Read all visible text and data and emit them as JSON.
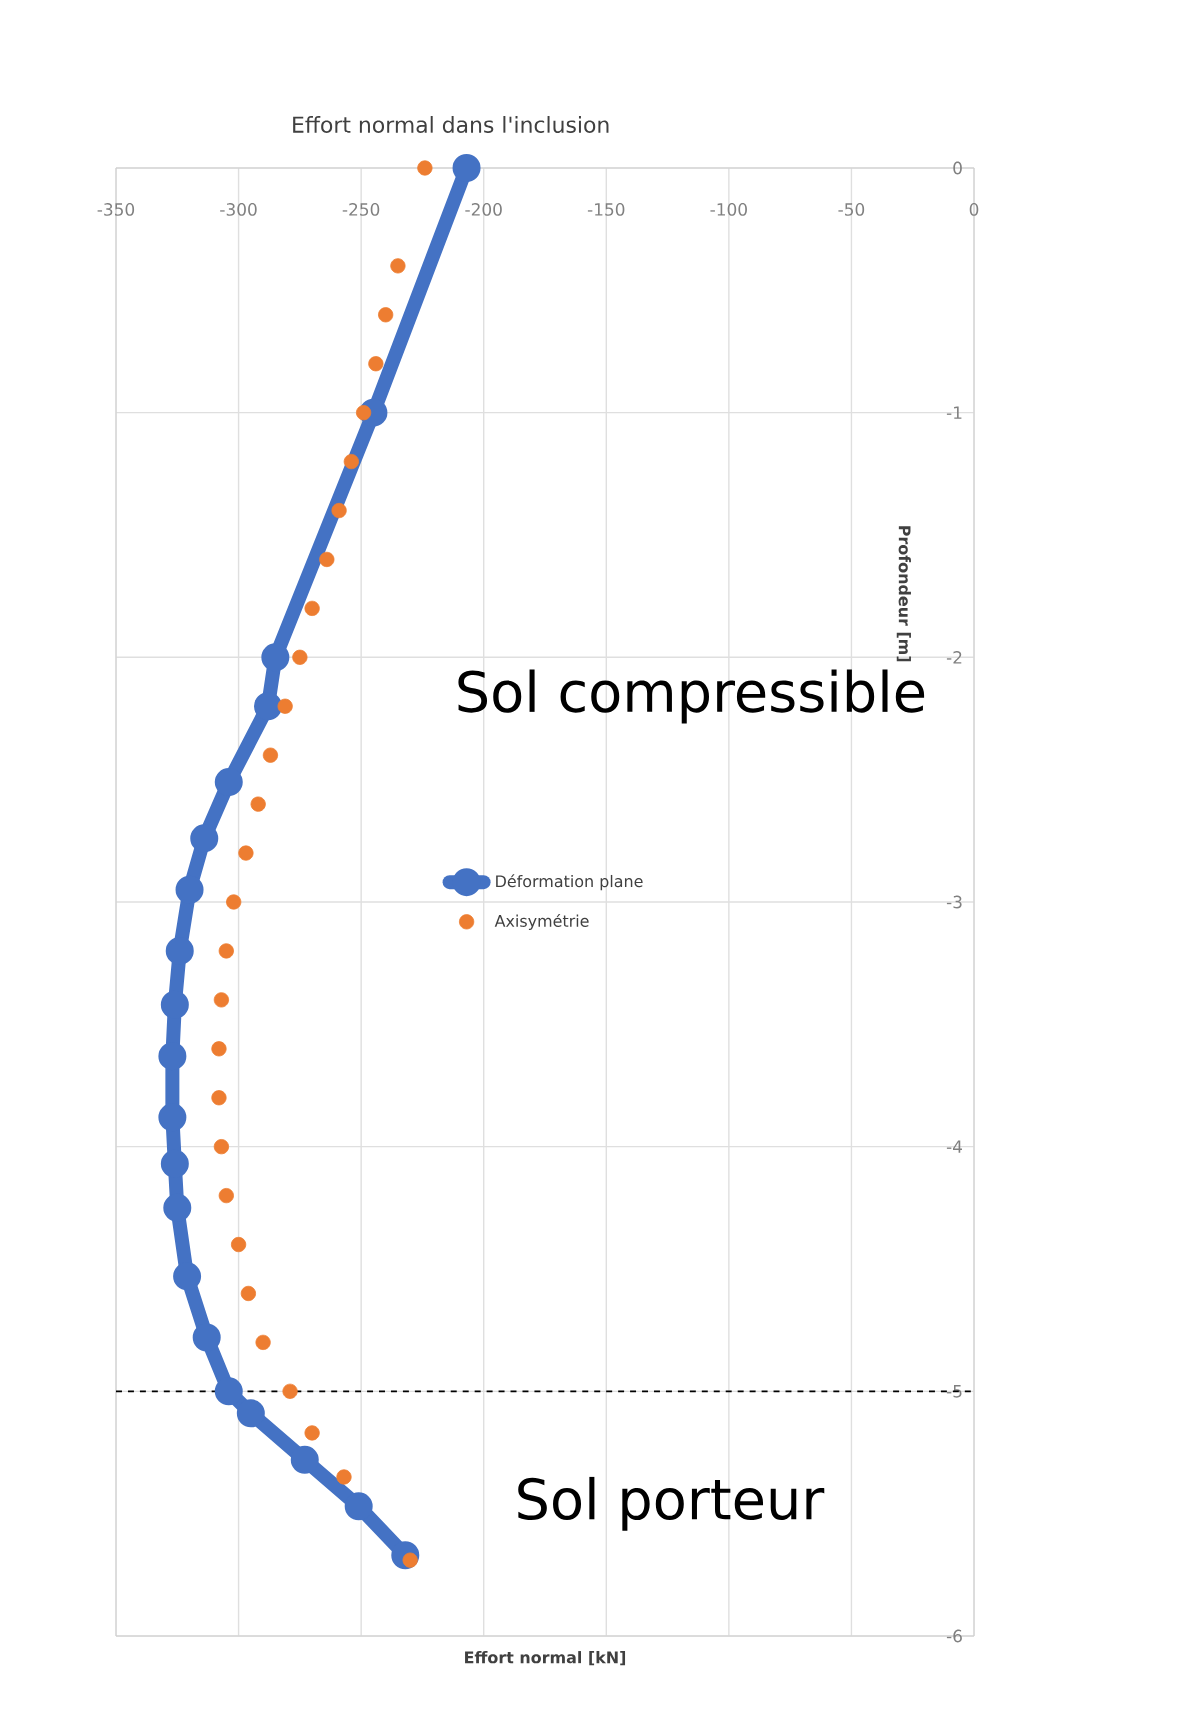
{
  "chart_data": {
    "type": "scatter",
    "title": "Effort normal dans l'inclusion",
    "xlabel": "Effort normal [kN]",
    "ylabel": "Profondeur [m]",
    "xlim": [
      -350,
      0
    ],
    "ylim": [
      -6,
      0
    ],
    "xticks": [
      -350,
      -300,
      -250,
      -200,
      -150,
      -100,
      -50,
      0
    ],
    "yticks": [
      -6,
      -5,
      -4,
      -3,
      -2,
      -1,
      0
    ],
    "grid": true,
    "legend": "center",
    "marker": "circle",
    "series": [
      {
        "name": "Déformation plane",
        "type": "line",
        "color": "#4472c4",
        "x": [
          -207,
          -245,
          -285,
          -288,
          -304,
          -314,
          -320,
          -324,
          -326,
          -327,
          -327,
          -326,
          -325,
          -321,
          -313,
          -304,
          -295,
          -273,
          -251,
          -232
        ],
        "values": [
          0,
          -1.0,
          -2.0,
          -2.2,
          -2.51,
          -2.74,
          -2.95,
          -3.2,
          -3.42,
          -3.63,
          -3.88,
          -4.07,
          -4.25,
          -4.53,
          -4.78,
          -5.0,
          -5.09,
          -5.28,
          -5.47,
          -5.67
        ]
      },
      {
        "name": "Axisymétrie",
        "color": "#ed7d31",
        "x": [
          -224,
          -235,
          -240,
          -244,
          -249,
          -254,
          -259,
          -264,
          -270,
          -275,
          -281,
          -287,
          -292,
          -297,
          -302,
          -305,
          -307,
          -308,
          -308,
          -307,
          -305,
          -300,
          -296,
          -290,
          -279,
          -270,
          -257,
          -230
        ],
        "values": [
          0,
          -0.4,
          -0.6,
          -0.8,
          -1.0,
          -1.2,
          -1.4,
          -1.6,
          -1.8,
          -2.0,
          -2.2,
          -2.4,
          -2.6,
          -2.8,
          -3.0,
          -3.2,
          -3.4,
          -3.6,
          -3.8,
          -4.0,
          -4.2,
          -4.4,
          -4.6,
          -4.8,
          -5.0,
          -5.17,
          -5.35,
          -5.69
        ]
      }
    ],
    "ref_lines": [
      {
        "axis": "y",
        "value": -5,
        "color": "#000000",
        "line_style": "dashed"
      }
    ],
    "annotations": [
      "Sol compressible",
      "Sol porteur"
    ]
  }
}
